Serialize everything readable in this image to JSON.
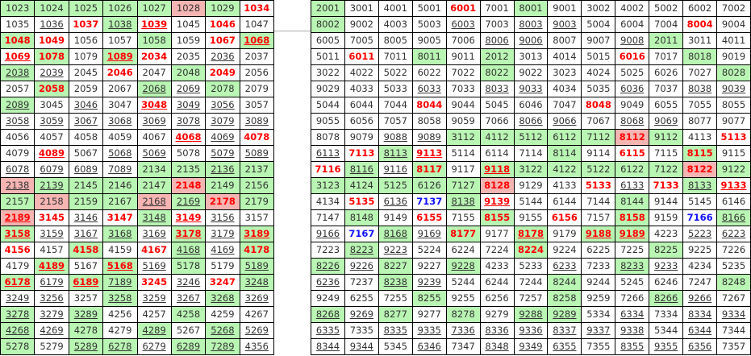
{
  "colors": {
    "green": "#b9f5b3",
    "pink": "#f5b5b3",
    "red": "#ff0000",
    "blue": "#1111ff"
  },
  "left_table": [
    [
      "1023|g",
      "1024|g",
      "1025|g",
      "1026|g",
      "1027|g",
      "1028|p",
      "1029|g",
      "1034|r"
    ],
    [
      "1035|",
      "1036|u",
      "1037|r",
      "1038|gu",
      "1039|ru",
      "1045|",
      "1046|r",
      "1047|"
    ],
    [
      "1048|gr",
      "1049|r",
      "1056|",
      "1057|",
      "1058|g",
      "1059|",
      "1067|r",
      "1068|gru"
    ],
    [
      "1069|ru",
      "1078|gr",
      "1079|",
      "1089|gru",
      "2034|r",
      "2035|",
      "2036|u",
      "2037|"
    ],
    [
      "2038|gu",
      "2039|u",
      "2045|",
      "2046|r",
      "2047|",
      "2048|g",
      "2049|r",
      "2056|"
    ],
    [
      "2057|",
      "2058|gr",
      "2059|",
      "2067|",
      "2068|gu",
      "2069|u",
      "2078|g",
      "2079|"
    ],
    [
      "2089|gu",
      "3045|",
      "3046|u",
      "3047|",
      "3048|ru",
      "3049|u",
      "3056|u",
      "3057|"
    ],
    [
      "3058|u",
      "3059|u",
      "3067|u",
      "3068|u",
      "3069|u",
      "3078|u",
      "3079|u",
      "3089|u"
    ],
    [
      "4056|",
      "4057|",
      "4058|",
      "4059|",
      "4067|",
      "4068|ru",
      "4069|u",
      "4078|r"
    ],
    [
      "4079|",
      "4089|ru",
      "5067|",
      "5068|u",
      "5069|u",
      "5078|",
      "5079|u",
      "5089|u"
    ],
    [
      "6078|u",
      "6079|u",
      "6089|u",
      "7089|u",
      "2134|g",
      "2135|g",
      "2136|gu",
      "2137|g"
    ],
    [
      "2138|pu",
      "2139|gu",
      "2145|g",
      "2146|g",
      "2147|g",
      "2148|pr",
      "2149|g",
      "2156|g"
    ],
    [
      "2157|g",
      "2158|p",
      "2159|g",
      "2167|g",
      "2168|pu",
      "2169|gu",
      "2178|pr",
      "2179|g"
    ],
    [
      "2189|pru",
      "3145|r",
      "3146|u",
      "3147|r",
      "3148|gu",
      "3149|ru",
      "3156|u",
      "3157|"
    ],
    [
      "3158|gru",
      "3159|u",
      "3167|u",
      "3168|gu",
      "3169|u",
      "3178|gru",
      "3179|u",
      "3189|gru"
    ],
    [
      "4156|r",
      "4157|",
      "4158|gr",
      "4159|",
      "4167|r",
      "4168|gu",
      "4169|u",
      "4178|gr"
    ],
    [
      "4179|",
      "4189|gru",
      "5167|",
      "5168|gru",
      "5169|u",
      "5178|g",
      "5179|",
      "5189|gu"
    ],
    [
      "6178|gru",
      "6179|u",
      "6189|gru",
      "7189|gu",
      "3245|r",
      "3246|u",
      "3247|r",
      "3248|gu"
    ],
    [
      "3249|u",
      "3256|u",
      "3257|",
      "3258|gu",
      "3259|u",
      "3267|u",
      "3268|gu",
      "3269|u"
    ],
    [
      "3278|gu",
      "3279|u",
      "3289|gu",
      "4256|",
      "4257|",
      "4258|g",
      "4259|",
      "4267|"
    ],
    [
      "4268|gu",
      "4269|u",
      "4278|g",
      "4279|",
      "4289|gu",
      "5267|",
      "5268|gu",
      "5269|u"
    ],
    [
      "5278|g",
      "5279|",
      "5289|gu",
      "6278|gu",
      "6279|u",
      "6289|gu",
      "7289|gu",
      "4356|u"
    ]
  ],
  "right_table": [
    [
      "2001|g",
      "3001|",
      "4001|",
      "5001|",
      "6001|r",
      "7001|",
      "8001|g",
      "9001|",
      "3002|",
      "4002|",
      "5002|",
      "6002|",
      "7002|"
    ],
    [
      "8002|g",
      "9002|",
      "4003|",
      "5003|",
      "6003|u",
      "7003|",
      "8003|u",
      "9003|u",
      "5004|",
      "6004|",
      "7004|",
      "8004|r",
      "9004|"
    ],
    [
      "6005|",
      "7005|",
      "8005|",
      "9005|",
      "7006|",
      "8006|u",
      "9006|u",
      "8007|",
      "9007|",
      "9008|u",
      "2011|g",
      "3011|",
      "4011|"
    ],
    [
      "5011|",
      "6011|r",
      "7011|",
      "8011|g",
      "9011|",
      "2012|g",
      "3013|",
      "4014|",
      "5015|",
      "6016|r",
      "7017|",
      "8018|g",
      "9019|"
    ],
    [
      "3022|",
      "4022|",
      "5022|",
      "6022|",
      "7022|",
      "8022|g",
      "9022|",
      "3023|",
      "4024|",
      "5025|",
      "6026|",
      "7027|",
      "8028|g"
    ],
    [
      "9029|",
      "4033|",
      "5033|",
      "6033|u",
      "7033|",
      "8033|u",
      "9033|u",
      "4034|",
      "5035|",
      "6036|u",
      "7037|",
      "8038|u",
      "9039|u"
    ],
    [
      "5044|",
      "6044|",
      "7044|",
      "8044|r",
      "9044|",
      "5045|",
      "6046|",
      "7047|",
      "8048|r",
      "9049|",
      "6055|",
      "7055|",
      "8055|"
    ],
    [
      "9055|",
      "6056|",
      "7057|",
      "8058|",
      "9059|",
      "7066|",
      "8066|u",
      "9066|u",
      "7067|",
      "8068|u",
      "9069|u",
      "8077|",
      "9077|"
    ],
    [
      "8078|",
      "9079|",
      "9088|u",
      "9089|u",
      "3112|g",
      "4112|g",
      "5112|g",
      "6112|g",
      "7112|g",
      "8112|pr",
      "9112|g",
      "4113|",
      "5113|r"
    ],
    [
      "6113|u",
      "7113|r",
      "8113|gu",
      "9113|ru",
      "5114|",
      "6114|",
      "7114|",
      "8114|g",
      "9114|",
      "6115|r",
      "7115|",
      "8115|gr",
      "9115|"
    ],
    [
      "7116|r",
      "8116|gu",
      "9116|u",
      "8117|gr",
      "9117|",
      "9118|gru",
      "3122|g",
      "4122|g",
      "5122|g",
      "6122|g",
      "7122|g",
      "8122|pr",
      "9122|g"
    ],
    [
      "3123|g",
      "4124|g",
      "5125|g",
      "6126|g",
      "7127|g",
      "8128|pr",
      "9129|",
      "4133|",
      "5133|r",
      "6133|u",
      "7133|r",
      "8133|gu",
      "9133|ru"
    ],
    [
      "4134|",
      "5135|r",
      "6136|u",
      "7137|B",
      "8138|gu",
      "9139|ru",
      "5144|",
      "6144|",
      "7144|",
      "8144|g",
      "9144|",
      "5145|",
      "6146|"
    ],
    [
      "7147|",
      "8148|g",
      "9149|",
      "6155|r",
      "7155|",
      "8155|gr",
      "9155|",
      "6156|r",
      "7157|",
      "8158|gr",
      "9159|",
      "7166|B",
      "8166|gu"
    ],
    [
      "9166|u",
      "7167|B",
      "8168|gu",
      "9169|u",
      "8177|gr",
      "9177|",
      "8178|gru",
      "9179|",
      "9188|gru",
      "9189|gru",
      "4223|",
      "5223|u",
      "6223|u"
    ],
    [
      "7223|",
      "8223|gu",
      "9223|u",
      "5224|",
      "6224|",
      "7224|",
      "8224|gr",
      "9224|",
      "6225|",
      "7225|",
      "8225|g",
      "9225|",
      "7226|"
    ],
    [
      "8226|gu",
      "9226|u",
      "8227|g",
      "9227|",
      "9228|gu",
      "4233|",
      "5233|",
      "6233|u",
      "7233|",
      "8233|gu",
      "9233|u",
      "4234|",
      "5235|"
    ],
    [
      "6236|u",
      "7237|",
      "8238|gu",
      "9239|u",
      "5244|",
      "6244|",
      "7244|",
      "8244|g",
      "9244|",
      "5245|",
      "6246|",
      "7247|",
      "8248|g"
    ],
    [
      "9249|",
      "6255|",
      "7255|",
      "8255|g",
      "9255|",
      "6256|",
      "7257|",
      "8258|g",
      "9259|",
      "7266|",
      "8266|gu",
      "9266|u",
      "7267|"
    ],
    [
      "8268|gu",
      "9269|u",
      "8277|g",
      "9277|",
      "8278|g",
      "9279|",
      "9288|gu",
      "9289|gu",
      "5334|",
      "6334|u",
      "7334|",
      "8334|u",
      "9334|u"
    ],
    [
      "6335|u",
      "7335|",
      "8335|u",
      "9335|u",
      "7336|u",
      "8336|u",
      "9336|u",
      "8337|u",
      "9337|u",
      "9338|u",
      "5344|",
      "6344|u",
      "7344|"
    ],
    [
      "8344|u",
      "9344|u",
      "5345|",
      "6346|u",
      "7347|",
      "8348|u",
      "9349|u",
      "6355|u",
      "7355|",
      "8355|u",
      "9355|u",
      "6356|u",
      "7357|"
    ]
  ]
}
